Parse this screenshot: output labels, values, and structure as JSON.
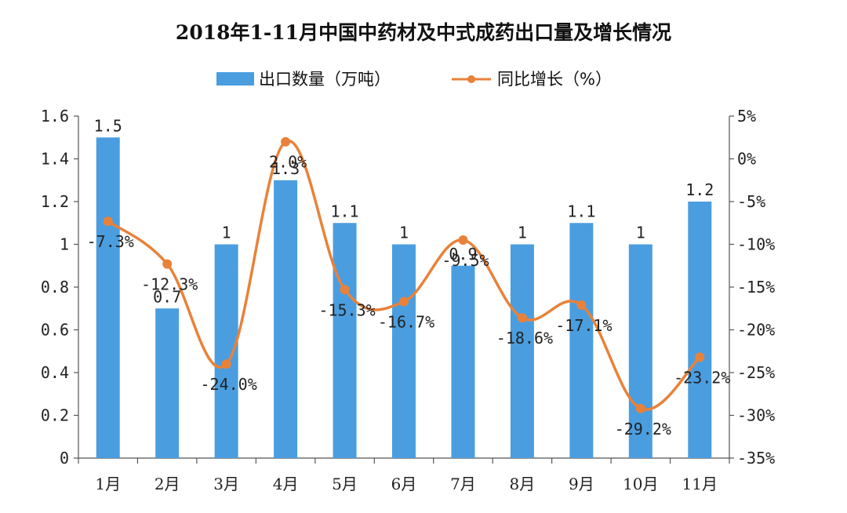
{
  "chart_data": {
    "type": "bar+line",
    "title": "2018年1-11月中国中药材及中式成药出口量及增长情况",
    "categories": [
      "1月",
      "2月",
      "3月",
      "4月",
      "5月",
      "6月",
      "7月",
      "8月",
      "9月",
      "10月",
      "11月"
    ],
    "series": [
      {
        "name": "出口数量（万吨）",
        "type": "bar",
        "axis": "left",
        "color": "#4a9ee0",
        "values": [
          1.5,
          0.7,
          1,
          1.3,
          1.1,
          1,
          0.9,
          1,
          1.1,
          1,
          1.2
        ],
        "labels": [
          "1.5",
          "0.7",
          "1",
          "1.3",
          "1.1",
          "1",
          "0.9",
          "1",
          "1.1",
          "1",
          "1.2"
        ]
      },
      {
        "name": "同比增长（%）",
        "type": "line",
        "axis": "right",
        "color": "#e8823a",
        "values": [
          -7.3,
          -12.3,
          -24.0,
          2.0,
          -15.3,
          -16.7,
          -9.5,
          -18.6,
          -17.1,
          -29.2,
          -23.2
        ],
        "labels": [
          "-7.3%",
          "-12.3%",
          "-24.0%",
          "2.0%",
          "-15.3%",
          "-16.7%",
          "-9.5%",
          "-18.6%",
          "-17.1%",
          "-29.2%",
          "-23.2%"
        ]
      }
    ],
    "y_left": {
      "min": 0,
      "max": 1.6,
      "ticks": [
        0,
        0.2,
        0.4,
        0.6,
        0.8,
        1,
        1.2,
        1.4,
        1.6
      ],
      "tick_labels": [
        "0",
        "0.2",
        "0.4",
        "0.6",
        "0.8",
        "1",
        "1.2",
        "1.4",
        "1.6"
      ]
    },
    "y_right": {
      "min": -35,
      "max": 5,
      "ticks": [
        -35,
        -30,
        -25,
        -20,
        -15,
        -10,
        -5,
        0,
        5
      ],
      "tick_labels": [
        "-35%",
        "-30%",
        "-25%",
        "-20%",
        "-15%",
        "-10%",
        "-5%",
        "0%",
        "5%"
      ]
    },
    "legend_position": "top-center",
    "grid": false
  }
}
